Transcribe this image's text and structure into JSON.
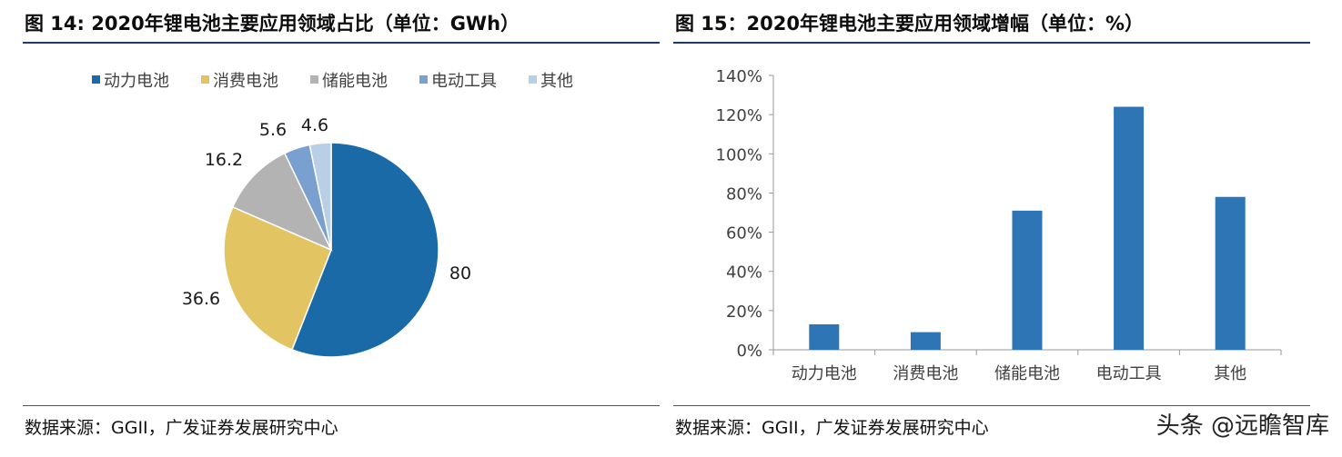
{
  "left": {
    "title": "图 14: 2020年锂电池主要应用领域占比（单位：GWh）",
    "source": "数据来源：GGII，广发证券发展研究中心"
  },
  "right": {
    "title": "图 15：2020年锂电池主要应用领域增幅（单位：%）",
    "source": "数据来源：GGII，广发证券发展研究中心"
  },
  "watermark": "头条 @远瞻智库",
  "colors": {
    "dark_blue": "#1a6aa8",
    "gold": "#e3c463",
    "gray": "#b3b3b3",
    "mid_blue": "#7aa0d0",
    "light_blue": "#b8cfe6",
    "bar": "#2e75b6",
    "rule": "#1f3a68"
  },
  "chart_data": [
    {
      "type": "pie",
      "categories": [
        "动力电池",
        "消费电池",
        "储能电池",
        "电动工具",
        "其他"
      ],
      "values": [
        80,
        36.6,
        16.2,
        5.6,
        4.6
      ],
      "data_labels": [
        "80",
        "36.6",
        "16.2",
        "5.6",
        "4.6"
      ],
      "legend": [
        "动力电池",
        "消费电池",
        "储能电池",
        "电动工具",
        "其他"
      ],
      "legend_position": "top",
      "start": "12 o'clock, clockwise"
    },
    {
      "type": "bar",
      "categories": [
        "动力电池",
        "消费电池",
        "储能电池",
        "电动工具",
        "其他"
      ],
      "values": [
        13,
        9,
        71,
        124,
        78
      ],
      "ylim": [
        0,
        140
      ],
      "yticks": [
        "0%",
        "20%",
        "40%",
        "60%",
        "80%",
        "100%",
        "120%",
        "140%"
      ],
      "grid": false
    }
  ]
}
